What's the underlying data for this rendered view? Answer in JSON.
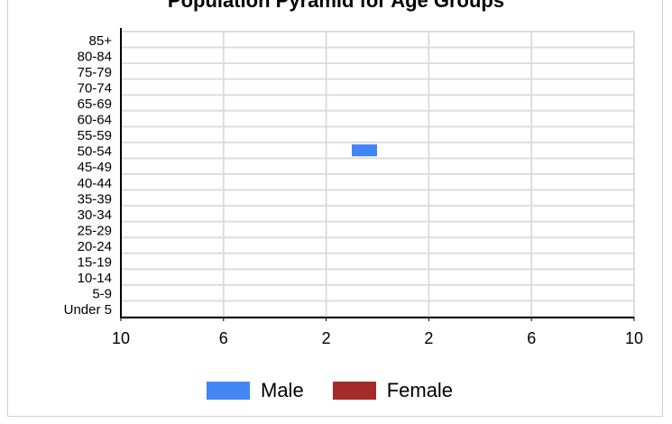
{
  "chart_data": {
    "type": "bar",
    "title": "Population Pyramid for Age Groups",
    "categories": [
      "Under 5",
      "5-9",
      "10-14",
      "15-19",
      "20-24",
      "25-29",
      "30-34",
      "35-39",
      "40-44",
      "45-49",
      "50-54",
      "55-59",
      "60-64",
      "65-69",
      "70-74",
      "75-79",
      "80-84",
      "85+"
    ],
    "series": [
      {
        "name": "Male",
        "color": "#4285f4",
        "values": [
          0,
          0,
          0,
          0,
          0,
          0,
          0,
          0,
          0,
          0,
          1,
          0,
          0,
          0,
          0,
          0,
          0,
          0
        ]
      },
      {
        "name": "Female",
        "color": "#a52a2a",
        "values": [
          0,
          0,
          0,
          0,
          0,
          0,
          0,
          0,
          0,
          0,
          0,
          0,
          0,
          0,
          0,
          0,
          0,
          0
        ]
      }
    ],
    "x_tick_labels": [
      "10",
      "6",
      "2",
      "2",
      "6",
      "10"
    ],
    "xlim": [
      -10,
      10
    ],
    "grid": true,
    "legend_position": "bottom"
  }
}
